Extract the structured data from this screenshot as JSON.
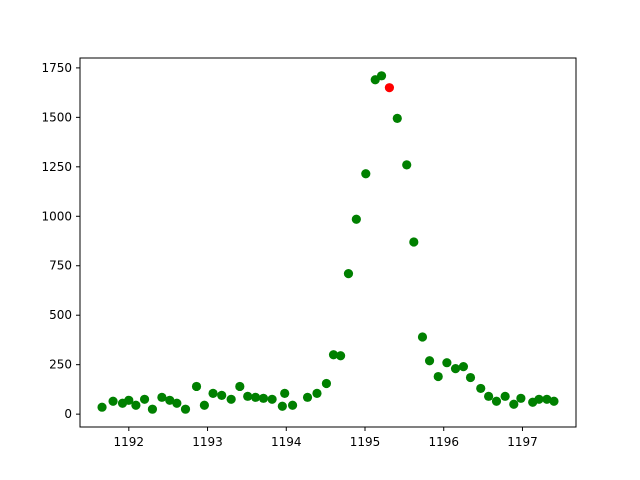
{
  "chart_data": {
    "type": "scatter",
    "title": "",
    "xlabel": "",
    "ylabel": "",
    "xlim": [
      1191.38,
      1197.68
    ],
    "ylim": [
      -65,
      1800
    ],
    "grid": false,
    "x_ticks": [
      1192,
      1193,
      1194,
      1195,
      1196,
      1197
    ],
    "y_ticks": [
      0,
      250,
      500,
      750,
      1000,
      1250,
      1500,
      1750
    ],
    "series": [
      {
        "color": "#008000",
        "marker": "circle",
        "points": [
          [
            1191.66,
            35
          ],
          [
            1191.8,
            65
          ],
          [
            1191.92,
            55
          ],
          [
            1192.0,
            70
          ],
          [
            1192.09,
            45
          ],
          [
            1192.2,
            75
          ],
          [
            1192.3,
            25
          ],
          [
            1192.42,
            85
          ],
          [
            1192.52,
            70
          ],
          [
            1192.61,
            55
          ],
          [
            1192.72,
            25
          ],
          [
            1192.86,
            140
          ],
          [
            1192.96,
            45
          ],
          [
            1193.07,
            105
          ],
          [
            1193.18,
            95
          ],
          [
            1193.3,
            75
          ],
          [
            1193.41,
            140
          ],
          [
            1193.51,
            90
          ],
          [
            1193.61,
            85
          ],
          [
            1193.71,
            80
          ],
          [
            1193.82,
            75
          ],
          [
            1193.95,
            40
          ],
          [
            1193.98,
            105
          ],
          [
            1194.08,
            45
          ],
          [
            1194.27,
            85
          ],
          [
            1194.39,
            105
          ],
          [
            1194.51,
            155
          ],
          [
            1194.6,
            300
          ],
          [
            1194.69,
            295
          ],
          [
            1194.79,
            710
          ],
          [
            1194.89,
            985
          ],
          [
            1195.01,
            1215
          ],
          [
            1195.13,
            1690
          ],
          [
            1195.21,
            1710
          ],
          [
            1195.41,
            1495
          ],
          [
            1195.53,
            1260
          ],
          [
            1195.62,
            870
          ],
          [
            1195.73,
            390
          ],
          [
            1195.82,
            270
          ],
          [
            1195.93,
            190
          ],
          [
            1196.04,
            260
          ],
          [
            1196.15,
            230
          ],
          [
            1196.25,
            240
          ],
          [
            1196.34,
            185
          ],
          [
            1196.47,
            130
          ],
          [
            1196.57,
            90
          ],
          [
            1196.67,
            65
          ],
          [
            1196.78,
            90
          ],
          [
            1196.89,
            50
          ],
          [
            1196.98,
            80
          ],
          [
            1197.13,
            60
          ],
          [
            1197.21,
            75
          ],
          [
            1197.31,
            75
          ],
          [
            1197.4,
            65
          ]
        ]
      },
      {
        "color": "#ff0000",
        "marker": "circle",
        "points": [
          [
            1195.31,
            1650
          ]
        ]
      }
    ]
  }
}
